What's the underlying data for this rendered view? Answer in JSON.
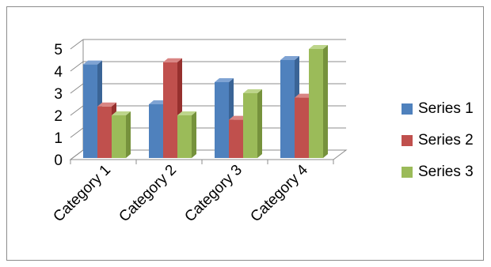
{
  "chart_data": {
    "type": "bar",
    "subtype": "3d-clustered-column",
    "categories": [
      "Category 1",
      "Category 2",
      "Category 3",
      "Category 4"
    ],
    "series": [
      {
        "name": "Series 1",
        "values": [
          4.3,
          2.5,
          3.5,
          4.5
        ],
        "color": "#4f81bd",
        "side": "#3a6496",
        "top": "#7fa3d3"
      },
      {
        "name": "Series 2",
        "values": [
          2.4,
          4.4,
          1.8,
          2.8
        ],
        "color": "#c0504d",
        "side": "#96302e",
        "top": "#d98583"
      },
      {
        "name": "Series 3",
        "values": [
          2.0,
          2.0,
          3.0,
          5.0
        ],
        "color": "#9bbb59",
        "side": "#76923c",
        "top": "#bdd58b"
      }
    ],
    "ylim": [
      0,
      5
    ],
    "yticks": [
      0,
      1,
      2,
      3,
      4,
      5
    ],
    "grid": true,
    "legend_position": "right",
    "title": "",
    "xlabel": "",
    "ylabel": ""
  }
}
